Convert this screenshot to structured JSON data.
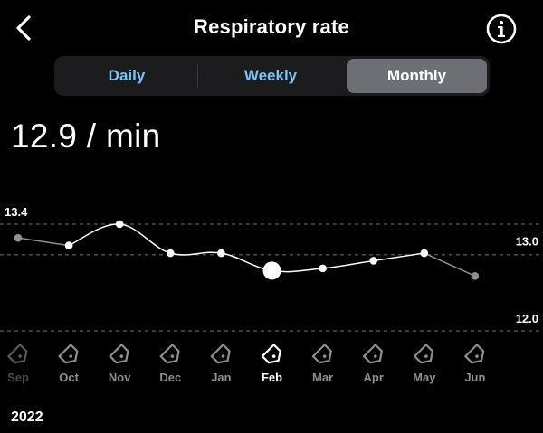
{
  "header": {
    "title": "Respiratory rate",
    "back_icon": "chevron-left-icon",
    "info_icon": "info-circle-icon"
  },
  "tabs": [
    {
      "label": "Daily",
      "active": false
    },
    {
      "label": "Weekly",
      "active": false
    },
    {
      "label": "Monthly",
      "active": true
    }
  ],
  "summary": {
    "value_text": "12.9 / min"
  },
  "chart_data": {
    "type": "line",
    "x": [
      "Sep",
      "Oct",
      "Nov",
      "Dec",
      "Jan",
      "Feb",
      "Mar",
      "Apr",
      "May",
      "Jun"
    ],
    "values": [
      13.22,
      13.12,
      13.4,
      13.02,
      13.02,
      12.79,
      12.82,
      12.92,
      13.02,
      12.72
    ],
    "selected_label": "Feb",
    "dim_labels": [
      "Sep"
    ],
    "tick_labels": [
      "13.4",
      "13.0",
      "12.0"
    ],
    "reference_lines": [
      13.4,
      13.0,
      12.0
    ],
    "ylim": [
      11.85,
      13.85
    ],
    "line_color": "#ffffff",
    "dim_point_color": "#8e8e93",
    "label_color": "#8e8e93",
    "year_label": "2022"
  },
  "colors": {
    "background": "#000000",
    "accent": "#7cc4f5",
    "active_tab": "#6e6f74"
  }
}
